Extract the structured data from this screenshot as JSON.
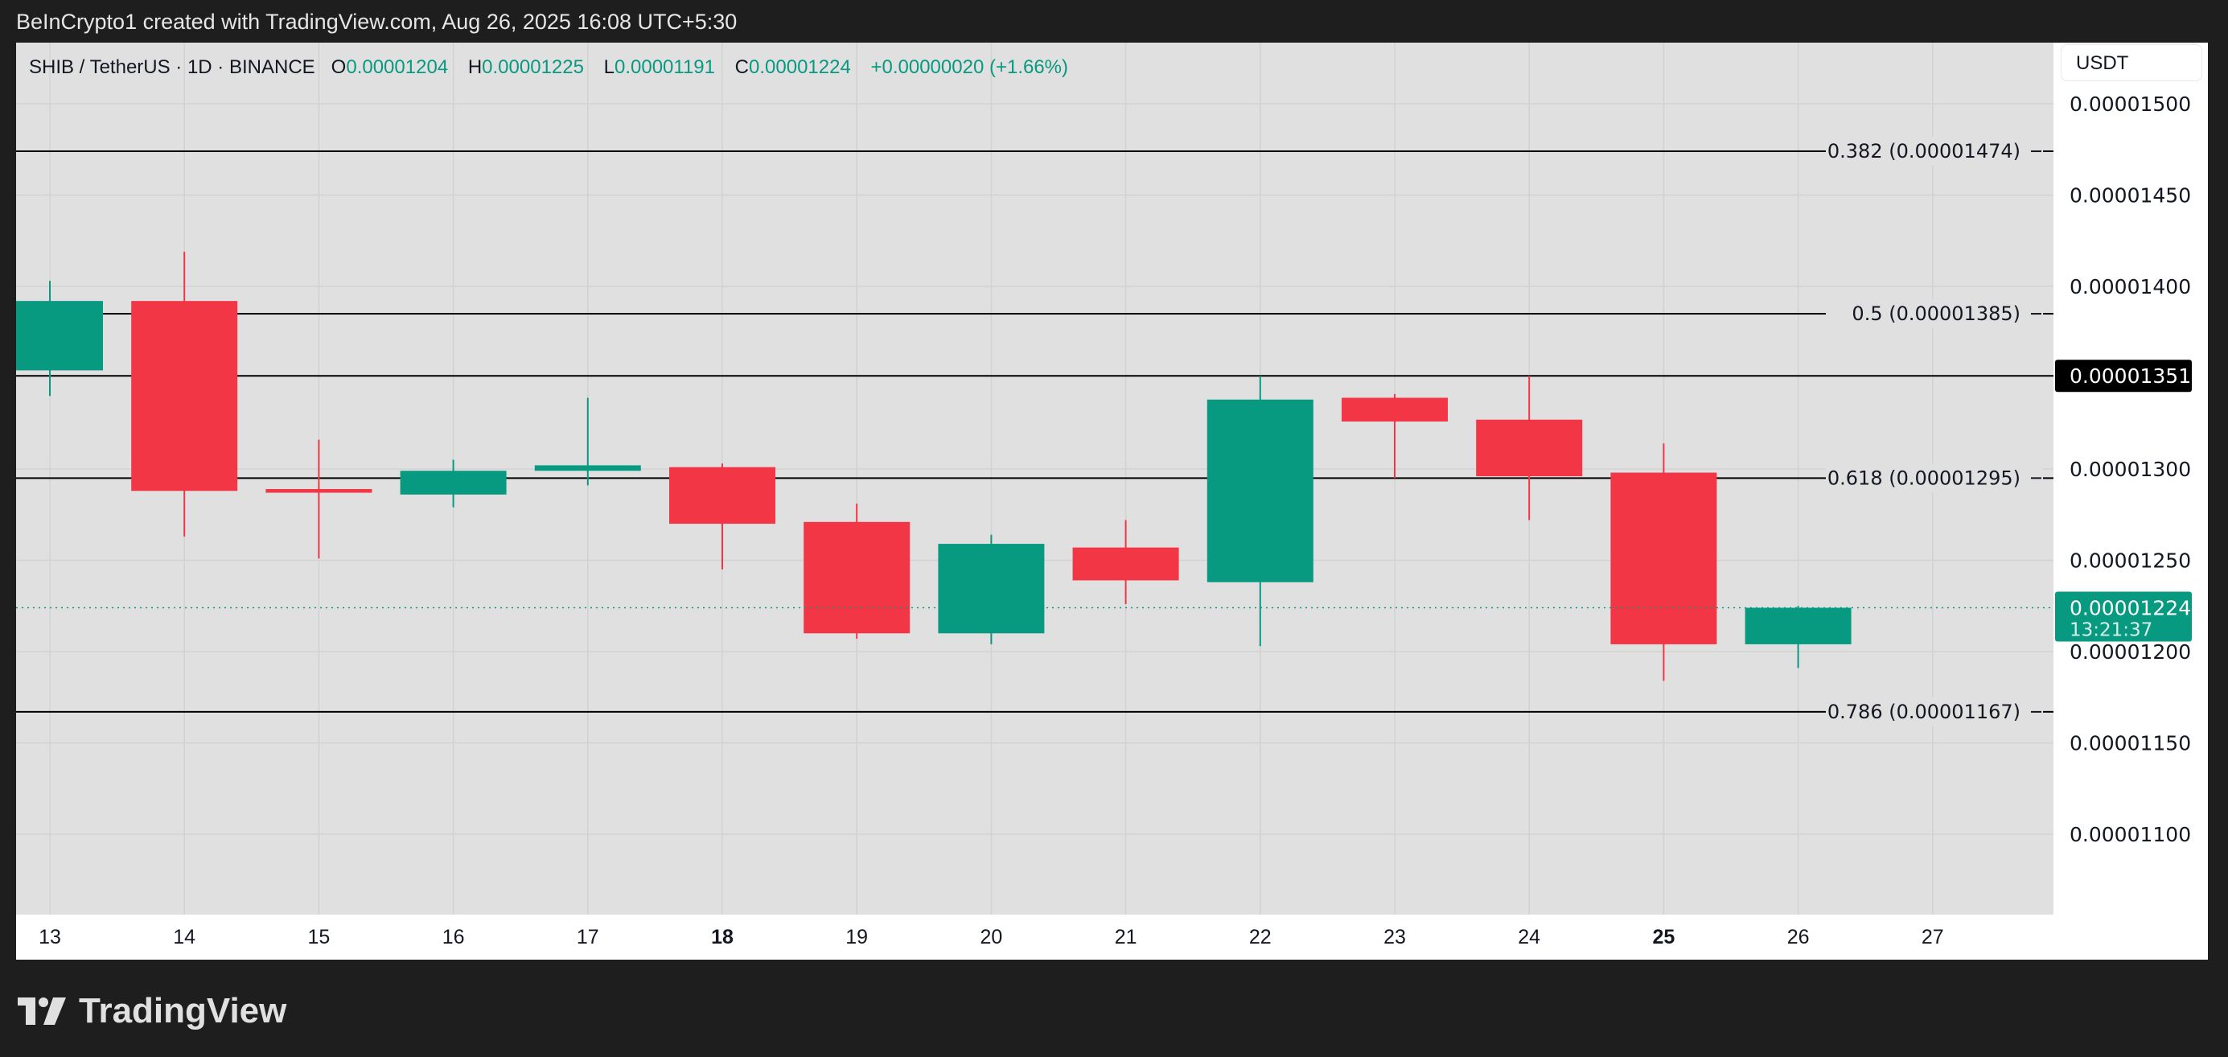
{
  "title": "BeInCrypto1 created with TradingView.com, Aug 26, 2025 16:08 UTC+5:30",
  "legend": {
    "symbol": "SHIB / TetherUS · 1D · BINANCE",
    "o_label": "O",
    "o": "0.00001204",
    "h_label": "H",
    "h": "0.00001225",
    "l_label": "L",
    "l": "0.00001191",
    "c_label": "C",
    "c": "0.00001224",
    "change": "+0.00000020 (+1.66%)"
  },
  "currency_button": "USDT",
  "logo_text": "TradingView",
  "colors": {
    "up": "#089981",
    "down": "#f23645",
    "background": "#e0e0e0",
    "axis_bg": "#ffffff",
    "frame": "#1e1e1e"
  },
  "chart_data": {
    "type": "candlestick",
    "ylim": [
      1.05e-05,
      1.53e-05
    ],
    "grid": true,
    "y_ticks": [
      "0.00001500",
      "0.00001450",
      "0.00001400",
      "0.00001300",
      "0.00001250",
      "0.00001200",
      "0.00001150",
      "0.00001100"
    ],
    "x_ticks": [
      {
        "label": "13",
        "bold": false
      },
      {
        "label": "14",
        "bold": false
      },
      {
        "label": "15",
        "bold": false
      },
      {
        "label": "16",
        "bold": false
      },
      {
        "label": "17",
        "bold": false
      },
      {
        "label": "18",
        "bold": true
      },
      {
        "label": "19",
        "bold": false
      },
      {
        "label": "20",
        "bold": false
      },
      {
        "label": "21",
        "bold": false
      },
      {
        "label": "22",
        "bold": false
      },
      {
        "label": "23",
        "bold": false
      },
      {
        "label": "24",
        "bold": false
      },
      {
        "label": "25",
        "bold": true
      },
      {
        "label": "26",
        "bold": false
      },
      {
        "label": "27",
        "bold": false
      }
    ],
    "candles": [
      {
        "day": "13",
        "open": 1.354e-05,
        "high": 1.403e-05,
        "low": 1.34e-05,
        "close": 1.392e-05
      },
      {
        "day": "14",
        "open": 1.392e-05,
        "high": 1.419e-05,
        "low": 1.263e-05,
        "close": 1.288e-05
      },
      {
        "day": "15",
        "open": 1.289e-05,
        "high": 1.316e-05,
        "low": 1.251e-05,
        "close": 1.287e-05
      },
      {
        "day": "16",
        "open": 1.286e-05,
        "high": 1.305e-05,
        "low": 1.279e-05,
        "close": 1.299e-05
      },
      {
        "day": "17",
        "open": 1.299e-05,
        "high": 1.339e-05,
        "low": 1.291e-05,
        "close": 1.302e-05
      },
      {
        "day": "18",
        "open": 1.301e-05,
        "high": 1.303e-05,
        "low": 1.245e-05,
        "close": 1.27e-05
      },
      {
        "day": "19",
        "open": 1.271e-05,
        "high": 1.281e-05,
        "low": 1.207e-05,
        "close": 1.21e-05
      },
      {
        "day": "20",
        "open": 1.21e-05,
        "high": 1.264e-05,
        "low": 1.204e-05,
        "close": 1.259e-05
      },
      {
        "day": "21",
        "open": 1.257e-05,
        "high": 1.272e-05,
        "low": 1.226e-05,
        "close": 1.239e-05
      },
      {
        "day": "22",
        "open": 1.238e-05,
        "high": 1.351e-05,
        "low": 1.203e-05,
        "close": 1.338e-05
      },
      {
        "day": "23",
        "open": 1.339e-05,
        "high": 1.341e-05,
        "low": 1.295e-05,
        "close": 1.326e-05
      },
      {
        "day": "24",
        "open": 1.327e-05,
        "high": 1.351e-05,
        "low": 1.272e-05,
        "close": 1.296e-05
      },
      {
        "day": "25",
        "open": 1.298e-05,
        "high": 1.314e-05,
        "low": 1.184e-05,
        "close": 1.204e-05
      },
      {
        "day": "26",
        "open": 1.204e-05,
        "high": 1.225e-05,
        "low": 1.191e-05,
        "close": 1.224e-05
      }
    ],
    "fib_levels": [
      {
        "label": "0.382 (0.00001474)",
        "value": 1.474e-05
      },
      {
        "label": "0.5 (0.00001385)",
        "value": 1.385e-05
      },
      {
        "label": "0.618 (0.00001295)",
        "value": 1.295e-05
      },
      {
        "label": "0.786 (0.00001167)",
        "value": 1.167e-05
      }
    ],
    "horizontal_line": {
      "label": "0.00001351",
      "value": 1.351e-05
    },
    "last_price": {
      "label": "0.00001224",
      "value": 1.224e-05,
      "countdown": "13:21:37"
    }
  }
}
